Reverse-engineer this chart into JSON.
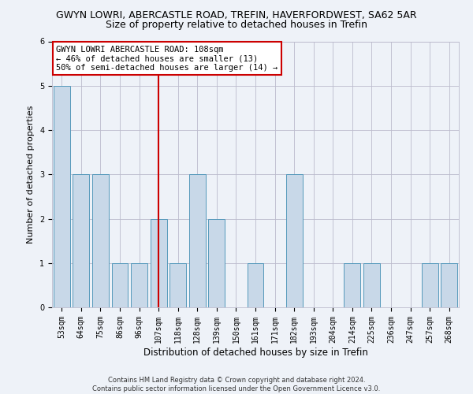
{
  "title1": "GWYN LOWRI, ABERCASTLE ROAD, TREFIN, HAVERFORDWEST, SA62 5AR",
  "title2": "Size of property relative to detached houses in Trefin",
  "xlabel": "Distribution of detached houses by size in Trefin",
  "ylabel": "Number of detached properties",
  "footnote": "Contains HM Land Registry data © Crown copyright and database right 2024.\nContains public sector information licensed under the Open Government Licence v3.0.",
  "categories": [
    "53sqm",
    "64sqm",
    "75sqm",
    "86sqm",
    "96sqm",
    "107sqm",
    "118sqm",
    "128sqm",
    "139sqm",
    "150sqm",
    "161sqm",
    "171sqm",
    "182sqm",
    "193sqm",
    "204sqm",
    "214sqm",
    "225sqm",
    "236sqm",
    "247sqm",
    "257sqm",
    "268sqm"
  ],
  "values": [
    5,
    3,
    3,
    1,
    1,
    2,
    1,
    3,
    2,
    0,
    1,
    0,
    3,
    0,
    0,
    1,
    1,
    0,
    0,
    1,
    1
  ],
  "bar_color": "#c8d8e8",
  "bar_edge_color": "#5599bb",
  "property_line_x": "107sqm",
  "property_line_color": "#cc0000",
  "annotation_text": "GWYN LOWRI ABERCASTLE ROAD: 108sqm\n← 46% of detached houses are smaller (13)\n50% of semi-detached houses are larger (14) →",
  "annotation_box_color": "#ffffff",
  "annotation_box_edge_color": "#cc0000",
  "ylim": [
    0,
    6
  ],
  "yticks": [
    0,
    1,
    2,
    3,
    4,
    5,
    6
  ],
  "background_color": "#eef2f8",
  "grid_color": "#bbbbcc",
  "title1_fontsize": 9,
  "title2_fontsize": 9,
  "xlabel_fontsize": 8.5,
  "ylabel_fontsize": 8,
  "tick_fontsize": 7,
  "annotation_fontsize": 7.5,
  "footnote_fontsize": 6
}
